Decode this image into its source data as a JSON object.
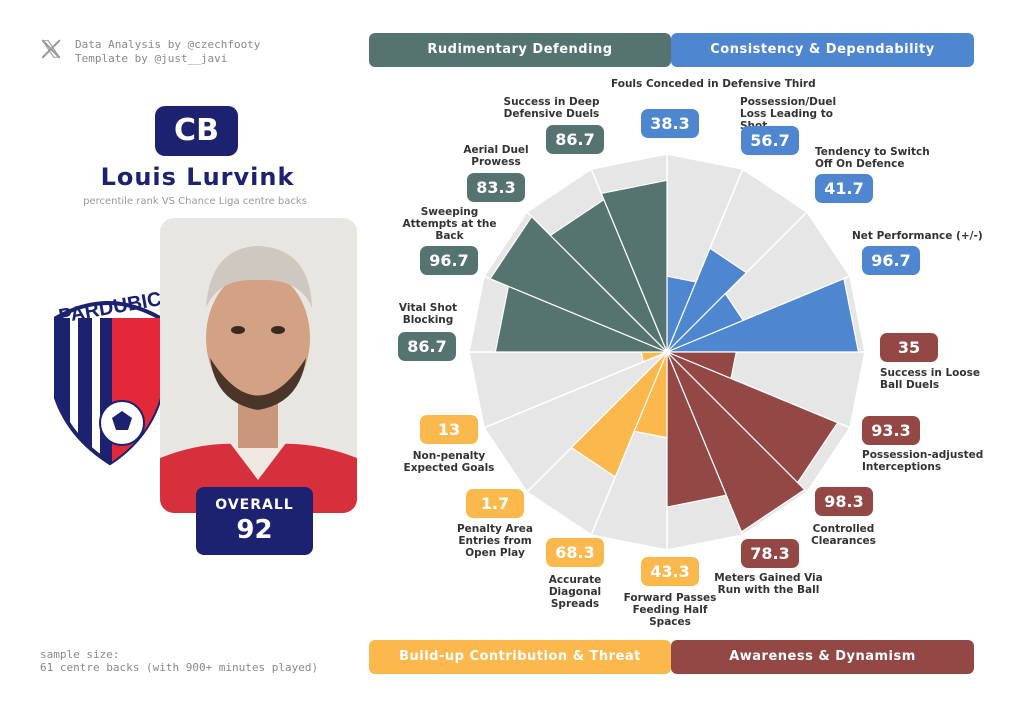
{
  "credits": {
    "line1": "Data Analysis by @czechfooty",
    "line2": "Template by @just__javi"
  },
  "player": {
    "position": "CB",
    "name": "Louis Lurvink",
    "subtitle": "percentile rank VS Chance Liga centre backs",
    "overall_label": "OVERALL",
    "overall_value": "92",
    "club": "PARDUBICE",
    "club_logo_text": "PARDUBIC"
  },
  "sample": {
    "line1": "sample size:",
    "line2": "61 centre backs (with 900+ minutes played)"
  },
  "categories": {
    "top_left": "Rudimentary Defending",
    "top_right": "Consistency & Dependability",
    "bottom_left": "Build-up Contribution & Threat",
    "bottom_right": "Awareness & Dynamism"
  },
  "colors": {
    "rudimentary": "#557470",
    "consistency": "#4f86d0",
    "buildup": "#fbb84d",
    "awareness": "#934846",
    "navy": "#1c2270",
    "slice_bg": "#e7e6e6"
  },
  "chart_data": {
    "type": "radial-bar",
    "ylim": [
      0,
      100
    ],
    "metrics": [
      {
        "label": "Fouls Conceded in Defensive Third",
        "value": 38.3,
        "display": "38.3",
        "group": "consistency"
      },
      {
        "label": "Possession/Duel Loss Leading to Shot",
        "value": 56.7,
        "display": "56.7",
        "group": "consistency"
      },
      {
        "label": "Tendency to Switch Off On Defence",
        "value": 41.7,
        "display": "41.7",
        "group": "consistency"
      },
      {
        "label": "Net Performance (+/-)",
        "value": 96.7,
        "display": "96.7",
        "group": "consistency"
      },
      {
        "label": "Success in Loose Ball Duels",
        "value": 35,
        "display": "35",
        "group": "awareness"
      },
      {
        "label": "Possession-adjusted Interceptions",
        "value": 93.3,
        "display": "93.3",
        "group": "awareness"
      },
      {
        "label": "Controlled Clearances",
        "value": 98.3,
        "display": "98.3",
        "group": "awareness"
      },
      {
        "label": "Meters Gained Via Run with the Ball",
        "value": 78.3,
        "display": "78.3",
        "group": "awareness"
      },
      {
        "label": "Forward Passes Feeding Half Spaces",
        "value": 43.3,
        "display": "43.3",
        "group": "buildup"
      },
      {
        "label": "Accurate Diagonal Spreads",
        "value": 68.3,
        "display": "68.3",
        "group": "buildup"
      },
      {
        "label": "Penalty Area Entries from Open Play",
        "value": 1.7,
        "display": "1.7",
        "group": "buildup"
      },
      {
        "label": "Non-penalty Expected Goals",
        "value": 13,
        "display": "13",
        "group": "buildup"
      },
      {
        "label": "Vital Shot Blocking",
        "value": 86.7,
        "display": "86.7",
        "group": "rudimentary"
      },
      {
        "label": "Sweeping Attempts at the Back",
        "value": 96.7,
        "display": "96.7",
        "group": "rudimentary"
      },
      {
        "label": "Aerial Duel Prowess",
        "value": 83.3,
        "display": "83.3",
        "group": "rudimentary"
      },
      {
        "label": "Success in Deep Defensive Duels",
        "value": 86.7,
        "display": "86.7",
        "group": "rudimentary"
      }
    ]
  }
}
